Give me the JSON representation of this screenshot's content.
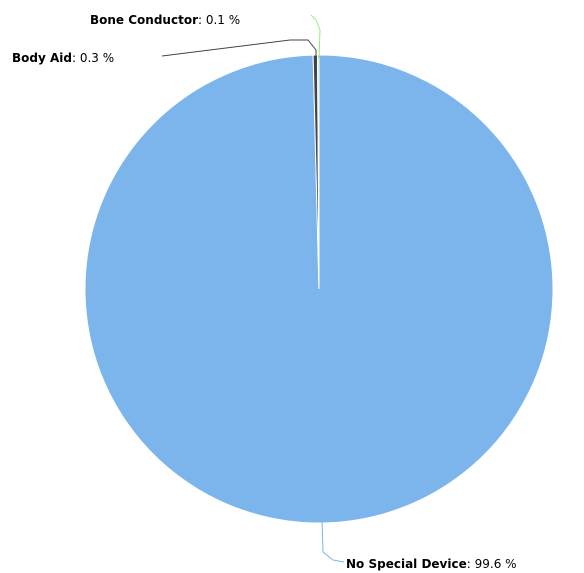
{
  "chart_data": {
    "type": "pie",
    "title": "",
    "unit": "%",
    "slices": [
      {
        "name": "No Special Device",
        "value": 99.6,
        "label": "No Special Device",
        "value_label": ": 99.6 %",
        "color": "#7cb5ec"
      },
      {
        "name": "Body Aid",
        "value": 0.3,
        "label": "Body Aid",
        "value_label": ": 0.3 %",
        "color": "#434348"
      },
      {
        "name": "Bone Conductor",
        "value": 0.1,
        "label": "Bone Conductor",
        "value_label": ": 0.1 %",
        "color": "#90ed7d"
      }
    ],
    "start_angle": "12 o'clock",
    "direction": "clockwise",
    "legend": "none"
  }
}
